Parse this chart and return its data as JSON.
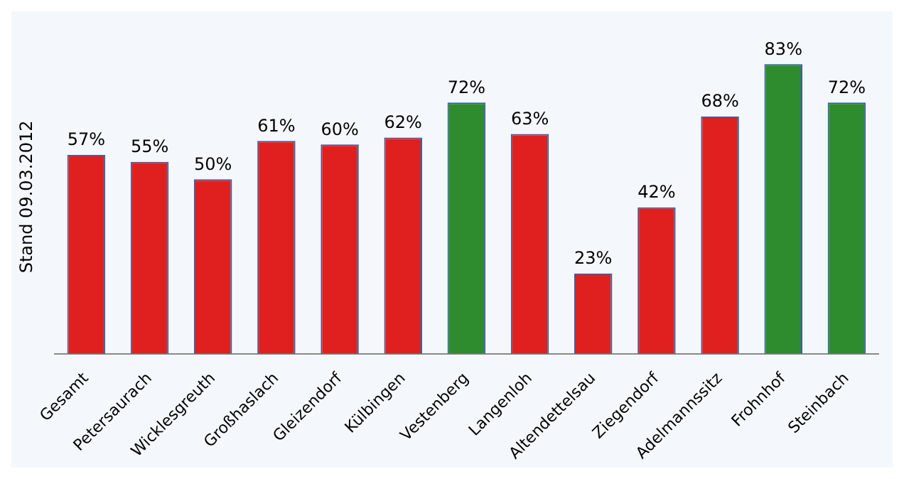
{
  "chart_data": {
    "type": "bar",
    "ylabel": "Stand 09.03.2012",
    "categories": [
      "Gesamt",
      "Petersaurach",
      "Wicklesgreuth",
      "Großhaslach",
      "Gleizendorf",
      "Külbingen",
      "Vestenberg",
      "Langenloh",
      "Altendettelsau",
      "Ziegendorf",
      "Adelmannssitz",
      "Frohnhof",
      "Steinbach"
    ],
    "values": [
      57,
      55,
      50,
      61,
      60,
      62,
      72,
      63,
      23,
      42,
      68,
      83,
      72
    ],
    "colors": [
      "#e0201e",
      "#e0201e",
      "#e0201e",
      "#e0201e",
      "#e0201e",
      "#e0201e",
      "#2e8b2e",
      "#e0201e",
      "#e0201e",
      "#e0201e",
      "#e0201e",
      "#2e8b2e",
      "#2e8b2e"
    ],
    "value_labels": [
      "57%",
      "55%",
      "50%",
      "61%",
      "60%",
      "62%",
      "72%",
      "63%",
      "23%",
      "42%",
      "68%",
      "83%",
      "72%"
    ],
    "tick_labels": "x",
    "grid": false,
    "legend": false
  }
}
